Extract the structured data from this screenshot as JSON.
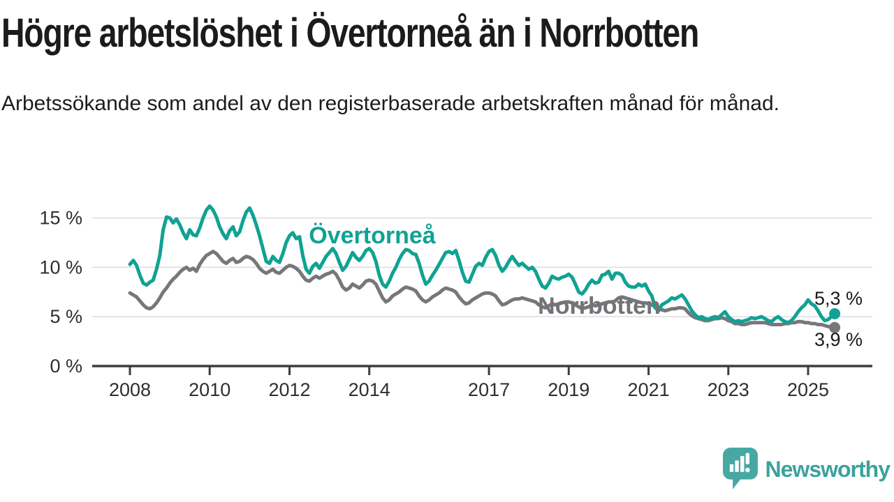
{
  "header": {
    "title": "Högre arbetslöshet i Övertorneå än i Norrbotten",
    "subtitle": "Arbetssökande som andel av den registerbaserade arbetskraften månad för månad."
  },
  "chart_data": {
    "type": "line",
    "unit": "%",
    "x_start": "2008-01",
    "x_end": "2025-09",
    "x_interval": "monthly",
    "ylim": [
      0,
      16.5
    ],
    "grid": "horizontal",
    "y_ticks": [
      {
        "value": 0,
        "label": "0 %"
      },
      {
        "value": 5,
        "label": "5 %"
      },
      {
        "value": 10,
        "label": "10 %"
      },
      {
        "value": 15,
        "label": "15 %"
      }
    ],
    "x_ticks": [
      {
        "year": 2008,
        "label": "2008"
      },
      {
        "year": 2010,
        "label": "2010"
      },
      {
        "year": 2012,
        "label": "2012"
      },
      {
        "year": 2014,
        "label": "2014"
      },
      {
        "year": 2017,
        "label": "2017"
      },
      {
        "year": 2019,
        "label": "2019"
      },
      {
        "year": 2021,
        "label": "2021"
      },
      {
        "year": 2023,
        "label": "2023"
      },
      {
        "year": 2025,
        "label": "2025"
      }
    ],
    "series": [
      {
        "name": "Övertorneå",
        "color": "#10a294",
        "end_label": "5,3 %",
        "end_value": 5.3,
        "values": [
          10.3,
          10.7,
          10.2,
          9.2,
          8.4,
          8.2,
          8.5,
          8.7,
          9.8,
          11.2,
          13.8,
          15.1,
          15.0,
          14.5,
          14.9,
          14.3,
          13.5,
          12.9,
          13.8,
          13.3,
          13.2,
          14.0,
          15.0,
          15.8,
          16.2,
          15.8,
          15.1,
          14.1,
          13.4,
          12.9,
          13.7,
          14.1,
          13.2,
          13.6,
          14.7,
          15.6,
          16.0,
          15.3,
          14.3,
          13.2,
          11.9,
          10.6,
          10.4,
          11.1,
          10.7,
          10.5,
          11.4,
          12.5,
          13.2,
          13.5,
          12.9,
          13.1,
          11.2,
          9.8,
          9.4,
          10.1,
          10.4,
          9.9,
          10.5,
          11.1,
          11.5,
          11.9,
          11.4,
          10.5,
          9.7,
          10.1,
          10.8,
          11.5,
          11.0,
          10.7,
          11.1,
          11.7,
          11.9,
          11.5,
          10.6,
          9.2,
          8.3,
          8.0,
          8.6,
          9.4,
          10.0,
          10.8,
          11.4,
          11.8,
          11.7,
          11.4,
          11.3,
          10.4,
          9.2,
          8.3,
          8.6,
          9.2,
          9.7,
          10.3,
          10.9,
          11.5,
          11.6,
          11.4,
          11.7,
          10.7,
          9.5,
          8.6,
          8.5,
          9.3,
          10.1,
          10.4,
          10.2,
          11.0,
          11.6,
          11.8,
          11.2,
          10.2,
          9.6,
          10.0,
          10.6,
          11.1,
          10.6,
          10.2,
          10.4,
          10.1,
          9.8,
          10.0,
          9.6,
          8.8,
          8.1,
          7.9,
          8.4,
          9.1,
          8.9,
          8.8,
          9.0,
          9.1,
          9.3,
          9.0,
          8.3,
          7.5,
          7.3,
          7.7,
          8.3,
          8.7,
          8.4,
          8.5,
          9.2,
          9.3,
          9.6,
          8.8,
          9.4,
          9.4,
          9.2,
          8.5,
          8.1,
          8.0,
          8.0,
          8.3,
          8.1,
          8.3,
          7.6,
          7.1,
          5.9,
          5.6,
          6.2,
          6.4,
          6.6,
          6.9,
          6.8,
          7.0,
          7.2,
          6.8,
          6.2,
          5.6,
          5.2,
          4.9,
          5.0,
          4.8,
          4.7,
          4.9,
          5.0,
          4.9,
          5.2,
          5.5,
          5.0,
          4.7,
          4.5,
          4.6,
          4.5,
          4.6,
          4.7,
          4.9,
          4.8,
          4.9,
          5.0,
          4.8,
          4.6,
          4.5,
          4.8,
          5.0,
          4.7,
          4.5,
          4.4,
          4.6,
          5.0,
          5.5,
          5.9,
          6.2,
          6.7,
          6.3,
          6.1,
          5.6,
          5.0,
          4.6,
          4.7,
          5.0,
          5.3
        ]
      },
      {
        "name": "Norrbotten",
        "color": "#77777b",
        "end_label": "3,9 %",
        "end_value": 3.9,
        "values": [
          7.4,
          7.2,
          7.0,
          6.6,
          6.2,
          5.9,
          5.8,
          6.0,
          6.4,
          6.9,
          7.5,
          7.9,
          8.4,
          8.8,
          9.1,
          9.5,
          9.8,
          10.0,
          9.7,
          9.9,
          9.6,
          10.3,
          10.8,
          11.2,
          11.4,
          11.6,
          11.4,
          11.0,
          10.6,
          10.4,
          10.7,
          10.9,
          10.5,
          10.6,
          10.9,
          11.1,
          11.0,
          10.8,
          10.4,
          9.9,
          9.6,
          9.4,
          9.6,
          9.8,
          9.5,
          9.4,
          9.7,
          10.0,
          10.2,
          10.1,
          9.9,
          9.6,
          9.1,
          8.7,
          8.6,
          8.9,
          9.1,
          8.9,
          9.1,
          9.3,
          9.4,
          9.6,
          9.3,
          8.7,
          8.0,
          7.7,
          7.9,
          8.3,
          8.1,
          7.9,
          8.2,
          8.6,
          8.7,
          8.6,
          8.3,
          7.6,
          6.9,
          6.5,
          6.7,
          7.1,
          7.3,
          7.5,
          7.8,
          8.0,
          7.9,
          7.8,
          7.6,
          7.1,
          6.7,
          6.5,
          6.7,
          7.0,
          7.2,
          7.4,
          7.7,
          7.9,
          7.8,
          7.7,
          7.5,
          7.0,
          6.6,
          6.3,
          6.4,
          6.7,
          6.9,
          7.1,
          7.3,
          7.4,
          7.4,
          7.3,
          7.1,
          6.6,
          6.2,
          6.3,
          6.5,
          6.7,
          6.8,
          6.8,
          6.9,
          6.8,
          6.7,
          6.6,
          6.5,
          6.2,
          6.0,
          5.9,
          6.1,
          6.3,
          6.2,
          6.3,
          6.4,
          6.5,
          6.5,
          6.4,
          6.2,
          6.0,
          5.8,
          5.9,
          6.0,
          6.2,
          6.1,
          6.2,
          6.3,
          6.4,
          6.5,
          6.5,
          6.6,
          6.9,
          7.0,
          6.9,
          6.8,
          6.7,
          6.6,
          6.5,
          6.4,
          6.4,
          6.3,
          6.2,
          6.0,
          5.8,
          5.7,
          5.6,
          5.7,
          5.8,
          5.8,
          5.9,
          5.9,
          5.8,
          5.4,
          5.1,
          4.9,
          4.8,
          4.7,
          4.6,
          4.6,
          4.7,
          4.8,
          4.8,
          4.9,
          4.8,
          4.6,
          4.5,
          4.3,
          4.3,
          4.2,
          4.2,
          4.3,
          4.4,
          4.4,
          4.4,
          4.4,
          4.4,
          4.3,
          4.2,
          4.2,
          4.2,
          4.2,
          4.3,
          4.3,
          4.4,
          4.4,
          4.5,
          4.5,
          4.4,
          4.4,
          4.3,
          4.3,
          4.2,
          4.2,
          4.1,
          4.0,
          4.0,
          3.9
        ]
      }
    ]
  },
  "footer": {
    "brand": "Newsworthy"
  }
}
